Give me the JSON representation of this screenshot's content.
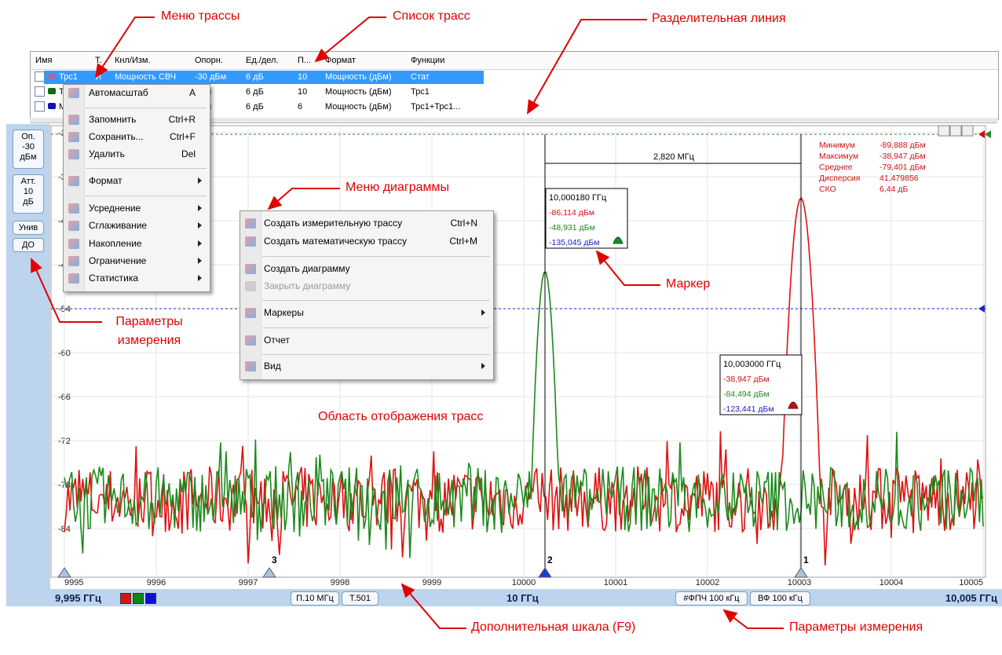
{
  "annotations": [
    "Меню трассы",
    "Список трасс",
    "Разделительная линия",
    "Меню диаграммы",
    "Маркер",
    "Параметры измерения",
    "Область отображения трасс",
    "Дополнительная шкала (F9)",
    "Параметры измерения"
  ],
  "trace_table": {
    "headers": [
      "Имя",
      "Т.",
      "Кнл/Изм.",
      "Опорн.",
      "Ед./дел.",
      "П...",
      "Формат",
      "Функции"
    ],
    "rows": [
      {
        "name": "Трс1",
        "type": "И",
        "channel": "Мощность СВЧ",
        "ref": "-30 дБм",
        "div": "6 дБ",
        "points": "10",
        "format": "Мощность (дБм)",
        "function": "Стат"
      },
      {
        "name": "Трс1",
        "ref": "дБм",
        "div": "6 дБ",
        "points": "10",
        "format": "Мощность (дБм)",
        "function": "Трс1"
      },
      {
        "name": "Мат",
        "ref": "дБм",
        "div": "6 дБ",
        "points": "6",
        "format": "Мощность (дБм)",
        "function": "Трс1+Трс1..."
      }
    ]
  },
  "trace_menu": [
    {
      "label": "Автомасштаб",
      "shortcut": "A"
    },
    {
      "label": "Запомнить",
      "shortcut": "Ctrl+R"
    },
    {
      "label": "Сохранить...",
      "shortcut": "Ctrl+F"
    },
    {
      "label": "Удалить",
      "shortcut": "Del"
    },
    {
      "label": "Формат",
      "submenu": true
    },
    {
      "label": "Усреднение",
      "submenu": true
    },
    {
      "label": "Сглаживание",
      "submenu": true
    },
    {
      "label": "Накопление",
      "submenu": true
    },
    {
      "label": "Ограничение",
      "submenu": true
    },
    {
      "label": "Статистика",
      "submenu": true
    }
  ],
  "diagram_menu": [
    {
      "label": "Создать измерительную трассу",
      "shortcut": "Ctrl+N"
    },
    {
      "label": "Создать математическую трассу",
      "shortcut": "Ctrl+M"
    },
    {
      "label": "Создать диаграмму"
    },
    {
      "label": "Закрыть диаграмму",
      "disabled": true
    },
    {
      "label": "Маркеры",
      "submenu": true
    },
    {
      "label": "Отчет"
    },
    {
      "label": "Вид",
      "submenu": true
    }
  ],
  "left_panel": [
    [
      "Оп.",
      "-30",
      "дБм"
    ],
    [
      "Атт.",
      "10",
      "дБ"
    ],
    [
      "Унив"
    ],
    [
      "ДО"
    ]
  ],
  "plot": {
    "yticks": [
      "-30",
      "-36",
      "-42",
      "-48",
      "-54",
      "-60",
      "-66",
      "-72",
      "-78",
      "-84"
    ],
    "xticks": [
      "9995",
      "9996",
      "9997",
      "9998",
      "9999",
      "10000",
      "10001",
      "10002",
      "10003",
      "10004",
      "10005"
    ],
    "delta": "2,820 МГц",
    "markers": [
      {
        "number": "2",
        "freq": "10,000180 ГГц",
        "readings": [
          "-86,114 дБм",
          "-48,931 дБм",
          "-135,045 дБм"
        ]
      },
      {
        "number": "1",
        "freq": "10,003000 ГГц",
        "readings": [
          "-38,947 дБм",
          "-84,494 дБм",
          "-123,441 дБм"
        ]
      },
      {
        "number": "3"
      }
    ],
    "stats": [
      [
        "Минимум",
        "-89,888 дБм"
      ],
      [
        "Максимум",
        "-38,947 дБм"
      ],
      [
        "Среднее",
        "-79,401 дБм"
      ],
      [
        "Дисперсия",
        "41,479856"
      ],
      [
        "СКО",
        "6,44 дБ"
      ]
    ]
  },
  "status_bar": {
    "start": "9,995 ГГц",
    "span": "П.10 МГц",
    "points": "Т.501",
    "center": "10 ГГц",
    "rbw": "#ФПЧ 100 кГц",
    "vbw": "ВФ 100 кГц",
    "stop": "10,005 ГГц"
  }
}
